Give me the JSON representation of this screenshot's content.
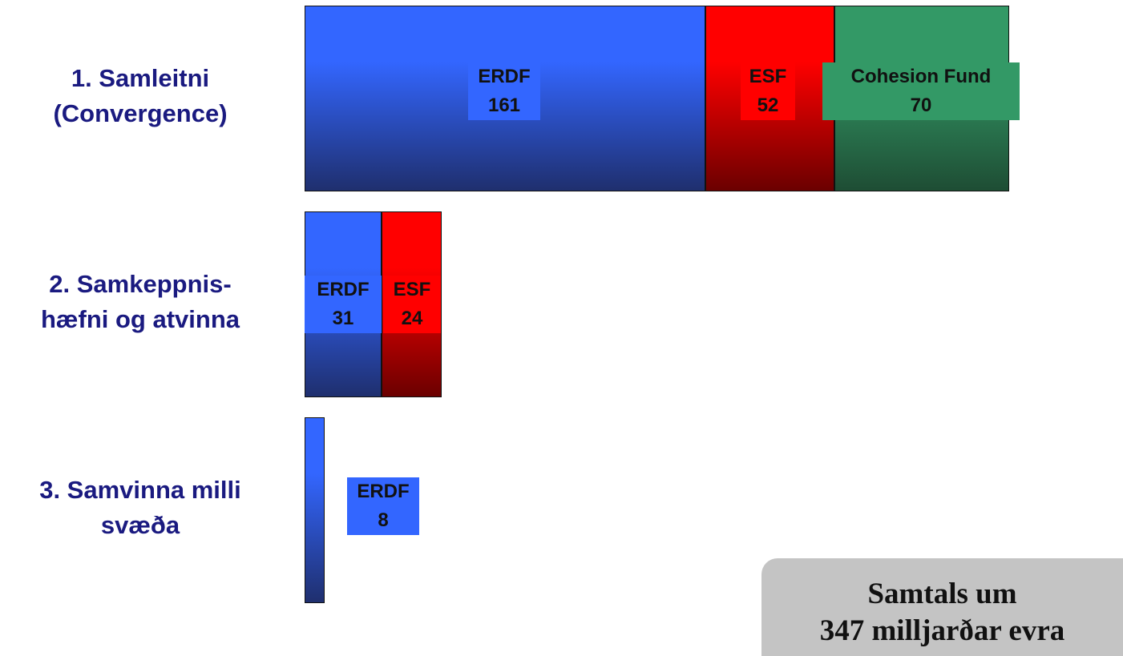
{
  "chart_data": {
    "type": "bar",
    "orientation": "horizontal",
    "stacked": true,
    "categories": [
      [
        "1. Samleitni",
        "(Convergence)"
      ],
      [
        "2. Samkeppnis-",
        "hæfni og atvinna"
      ],
      [
        "3. Samvinna milli",
        "svæða"
      ]
    ],
    "series": [
      {
        "name": "ERDF",
        "values": [
          161,
          31,
          8
        ]
      },
      {
        "name": "ESF",
        "values": [
          52,
          24,
          0
        ]
      },
      {
        "name": "Cohesion Fund",
        "values": [
          70,
          0,
          0
        ]
      }
    ],
    "colors": {
      "ERDF": {
        "top": "#3366ff",
        "bottom": "#1f2f6e",
        "label_bg": "#3366ff"
      },
      "ESF": {
        "top": "#ff0000",
        "bottom": "#6b0000",
        "label_bg": "#ff0000"
      },
      "Cohesion Fund": {
        "top": "#339966",
        "bottom": "#1e4d34",
        "label_bg": "#339966"
      }
    },
    "legend": "none",
    "grid": false
  },
  "total_box": {
    "line1": "Samtals um",
    "line2": "347 milljarðar evra"
  }
}
